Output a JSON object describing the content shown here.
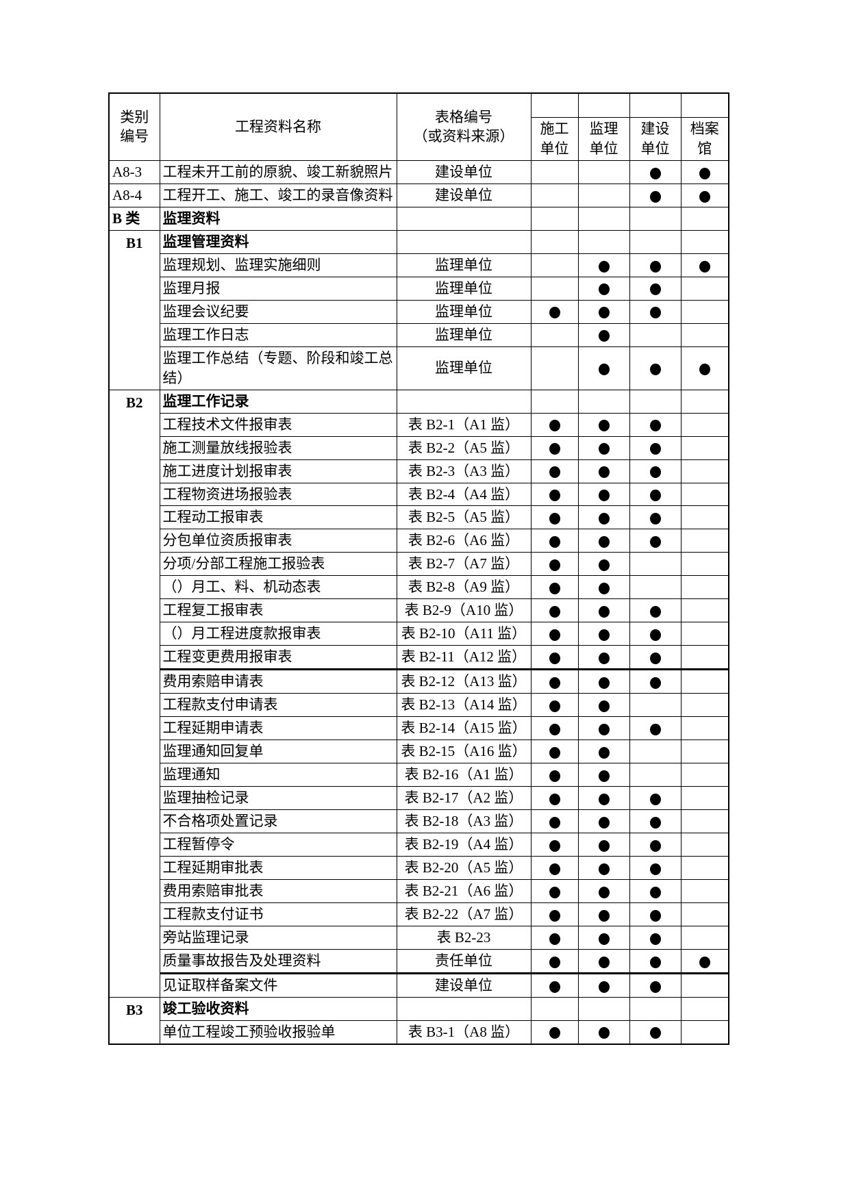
{
  "table": {
    "header": {
      "category": "类别\n编号",
      "name": "工程资料名称",
      "form": "表格编号\n（或资料来源）",
      "units": [
        "施工\n单位",
        "监理\n单位",
        "建设\n单位",
        "档案\n馆"
      ]
    },
    "rows": [
      {
        "code": "A8-3",
        "code_rowspan": 1,
        "code_bold": false,
        "code_align": "left",
        "name": "工程未开工前的原貌、竣工新貌照片",
        "name_bold": false,
        "form": "建设单位",
        "marks": [
          0,
          0,
          1,
          1
        ]
      },
      {
        "code": "A8-4",
        "code_rowspan": 1,
        "code_bold": false,
        "code_align": "left",
        "name": "工程开工、施工、竣工的录音像资料",
        "name_bold": false,
        "form": "建设单位",
        "marks": [
          0,
          0,
          1,
          1
        ]
      },
      {
        "code": "B 类",
        "code_rowspan": 1,
        "code_bold": true,
        "code_align": "left",
        "name": "监理资料",
        "name_bold": true,
        "form": "",
        "marks": [
          0,
          0,
          0,
          0
        ]
      },
      {
        "code": "B1",
        "code_rowspan": 6,
        "code_bold": true,
        "code_align": "center",
        "name": "监理管理资料",
        "name_bold": true,
        "form": "",
        "marks": [
          0,
          0,
          0,
          0
        ]
      },
      {
        "code": null,
        "name": "监理规划、监理实施细则",
        "name_bold": false,
        "form": "监理单位",
        "marks": [
          0,
          1,
          1,
          1
        ]
      },
      {
        "code": null,
        "name": "监理月报",
        "name_bold": false,
        "form": "监理单位",
        "marks": [
          0,
          1,
          1,
          0
        ]
      },
      {
        "code": null,
        "name": "监理会议纪要",
        "name_bold": false,
        "form": "监理单位",
        "marks": [
          1,
          1,
          1,
          0
        ]
      },
      {
        "code": null,
        "name": "监理工作日志",
        "name_bold": false,
        "form": "监理单位",
        "marks": [
          0,
          1,
          0,
          0
        ]
      },
      {
        "code": null,
        "name": "监理工作总结（专题、阶段和竣工总结）",
        "name_bold": false,
        "form": "监理单位",
        "marks": [
          0,
          1,
          1,
          1
        ]
      },
      {
        "code": "B2",
        "code_rowspan": 26,
        "code_bold": true,
        "code_align": "center",
        "name": "监理工作记录",
        "name_bold": true,
        "form": "",
        "marks": [
          0,
          0,
          0,
          0
        ]
      },
      {
        "code": null,
        "name": "工程技术文件报审表",
        "name_bold": false,
        "form": "表 B2-1（A1 监）",
        "marks": [
          1,
          1,
          1,
          0
        ]
      },
      {
        "code": null,
        "name": "施工测量放线报验表",
        "name_bold": false,
        "form": "表 B2-2（A5 监）",
        "marks": [
          1,
          1,
          1,
          0
        ]
      },
      {
        "code": null,
        "name": "施工进度计划报审表",
        "name_bold": false,
        "form": "表 B2-3（A3 监）",
        "marks": [
          1,
          1,
          1,
          0
        ]
      },
      {
        "code": null,
        "name": "工程物资进场报验表",
        "name_bold": false,
        "form": "表 B2-4（A4 监）",
        "marks": [
          1,
          1,
          1,
          0
        ]
      },
      {
        "code": null,
        "name": "工程动工报审表",
        "name_bold": false,
        "form": "表 B2-5（A5 监）",
        "marks": [
          1,
          1,
          1,
          0
        ]
      },
      {
        "code": null,
        "name": "分包单位资质报审表",
        "name_bold": false,
        "form": "表 B2-6（A6 监）",
        "marks": [
          1,
          1,
          1,
          0
        ]
      },
      {
        "code": null,
        "name": "分项/分部工程施工报验表",
        "name_bold": false,
        "form": "表 B2-7（A7 监）",
        "marks": [
          1,
          1,
          0,
          0
        ]
      },
      {
        "code": null,
        "name": "（）月工、料、机动态表",
        "name_bold": false,
        "form": "表 B2-8（A9 监）",
        "marks": [
          1,
          1,
          0,
          0
        ]
      },
      {
        "code": null,
        "name": "工程复工报审表",
        "name_bold": false,
        "form": "表 B2-9（A10 监）",
        "marks": [
          1,
          1,
          1,
          0
        ]
      },
      {
        "code": null,
        "name": "（）月工程进度款报审表",
        "name_bold": false,
        "form": "表 B2-10（A11 监）",
        "marks": [
          1,
          1,
          1,
          0
        ]
      },
      {
        "code": null,
        "name": "工程变更费用报审表",
        "name_bold": false,
        "form": "表 B2-11（A12 监）",
        "marks": [
          1,
          1,
          1,
          0
        ],
        "thick_divider_after": true
      },
      {
        "code": null,
        "name": "费用索赔申请表",
        "name_bold": false,
        "form": "表 B2-12（A13 监）",
        "marks": [
          1,
          1,
          1,
          0
        ]
      },
      {
        "code": null,
        "name": "工程款支付申请表",
        "name_bold": false,
        "form": "表 B2-13（A14 监）",
        "marks": [
          1,
          1,
          0,
          0
        ]
      },
      {
        "code": null,
        "name": "工程延期申请表",
        "name_bold": false,
        "form": "表 B2-14（A15 监）",
        "marks": [
          1,
          1,
          1,
          0
        ]
      },
      {
        "code": null,
        "name": "监理通知回复单",
        "name_bold": false,
        "form": "表 B2-15（A16 监）",
        "marks": [
          1,
          1,
          0,
          0
        ]
      },
      {
        "code": null,
        "name": "监理通知",
        "name_bold": false,
        "form": "表 B2-16（A1 监）",
        "marks": [
          1,
          1,
          0,
          0
        ]
      },
      {
        "code": null,
        "name": "监理抽检记录",
        "name_bold": false,
        "form": "表 B2-17（A2 监）",
        "marks": [
          1,
          1,
          1,
          0
        ]
      },
      {
        "code": null,
        "name": "不合格项处置记录",
        "name_bold": false,
        "form": "表 B2-18（A3 监）",
        "marks": [
          1,
          1,
          1,
          0
        ]
      },
      {
        "code": null,
        "name": "工程暂停令",
        "name_bold": false,
        "form": "表 B2-19（A4 监）",
        "marks": [
          1,
          1,
          1,
          0
        ]
      },
      {
        "code": null,
        "name": "工程延期审批表",
        "name_bold": false,
        "form": "表 B2-20（A5 监）",
        "marks": [
          1,
          1,
          1,
          0
        ]
      },
      {
        "code": null,
        "name": "费用索赔审批表",
        "name_bold": false,
        "form": "表 B2-21（A6 监）",
        "marks": [
          1,
          1,
          1,
          0
        ]
      },
      {
        "code": null,
        "name": "工程款支付证书",
        "name_bold": false,
        "form": "表 B2-22（A7 监）",
        "marks": [
          1,
          1,
          1,
          0
        ]
      },
      {
        "code": null,
        "name": "旁站监理记录",
        "name_bold": false,
        "form": "表 B2-23",
        "marks": [
          1,
          1,
          1,
          0
        ]
      },
      {
        "code": null,
        "name": "质量事故报告及处理资料",
        "name_bold": false,
        "form": "责任单位",
        "marks": [
          1,
          1,
          1,
          1
        ],
        "thick_divider_after": true
      },
      {
        "code": null,
        "name": "见证取样备案文件",
        "name_bold": false,
        "form": "建设单位",
        "marks": [
          1,
          1,
          1,
          0
        ]
      },
      {
        "code": "B3",
        "code_rowspan": 2,
        "code_bold": true,
        "code_align": "center",
        "name": "竣工验收资料",
        "name_bold": true,
        "form": "",
        "marks": [
          0,
          0,
          0,
          0
        ]
      },
      {
        "code": null,
        "name": "单位工程竣工预验收报验单",
        "name_bold": false,
        "form": "表 B3-1（A8 监）",
        "marks": [
          1,
          1,
          1,
          0
        ]
      }
    ]
  }
}
